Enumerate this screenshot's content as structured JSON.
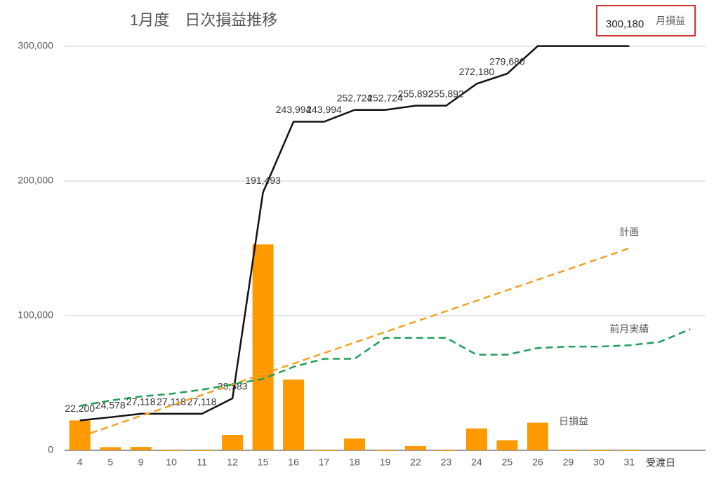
{
  "chart_data": {
    "type": "combo",
    "title": "1月度　日次損益推移",
    "summary": {
      "value": "300,180",
      "label": "月損益"
    },
    "x_label": "受渡日",
    "categories": [
      "4",
      "5",
      "9",
      "10",
      "11",
      "12",
      "15",
      "16",
      "17",
      "18",
      "19",
      "22",
      "23",
      "24",
      "25",
      "26",
      "29",
      "30",
      "31",
      null,
      null
    ],
    "ylim": [
      0,
      300000
    ],
    "yticks": [
      0,
      {
        "value": 100000,
        "label": "100,000"
      },
      {
        "value": 200000,
        "label": "200,000"
      },
      {
        "value": 300000,
        "label": "300,000"
      }
    ],
    "grid": true,
    "series": [
      {
        "name": "日損益",
        "type": "bar",
        "color": "#ff9900",
        "values": [
          22200,
          2378,
          2540,
          0,
          0,
          11465,
          152910,
          52501,
          0,
          8730,
          0,
          3168,
          0,
          16288,
          7500,
          20500,
          0,
          0,
          0,
          null,
          null
        ]
      },
      {
        "type": "line",
        "color": "#111111",
        "values": [
          22200,
          24578,
          27118,
          27118,
          27118,
          38583,
          191493,
          243994,
          243994,
          252724,
          252724,
          255892,
          255892,
          272180,
          279680,
          300180,
          300180,
          300180,
          300180,
          null,
          null
        ],
        "value_labels": [
          "22,200",
          "24,578",
          "27,118",
          "27,118",
          "27,118",
          "38,583",
          "191,493",
          "243,994",
          "243,994",
          "252,724",
          "252,724",
          "255,892",
          "255,892",
          "272,180",
          "279,680",
          null,
          null,
          null,
          null,
          null,
          null
        ]
      },
      {
        "name": "計画",
        "type": "line",
        "dashed": true,
        "color": "#f5a125",
        "values": [
          10000,
          17800,
          25600,
          33300,
          41100,
          48900,
          56700,
          64400,
          72200,
          80000,
          87800,
          95600,
          103300,
          111100,
          118900,
          126700,
          134400,
          142200,
          150000,
          null,
          null
        ]
      },
      {
        "name": "前月実績",
        "type": "line",
        "dashed": true,
        "color": "#1f9d5c",
        "values": [
          33000,
          37000,
          40000,
          42000,
          45000,
          49000,
          53000,
          62000,
          68000,
          68000,
          83500,
          83500,
          83500,
          71000,
          71000,
          76000,
          77000,
          77000,
          78000,
          80500,
          90000
        ]
      }
    ]
  }
}
